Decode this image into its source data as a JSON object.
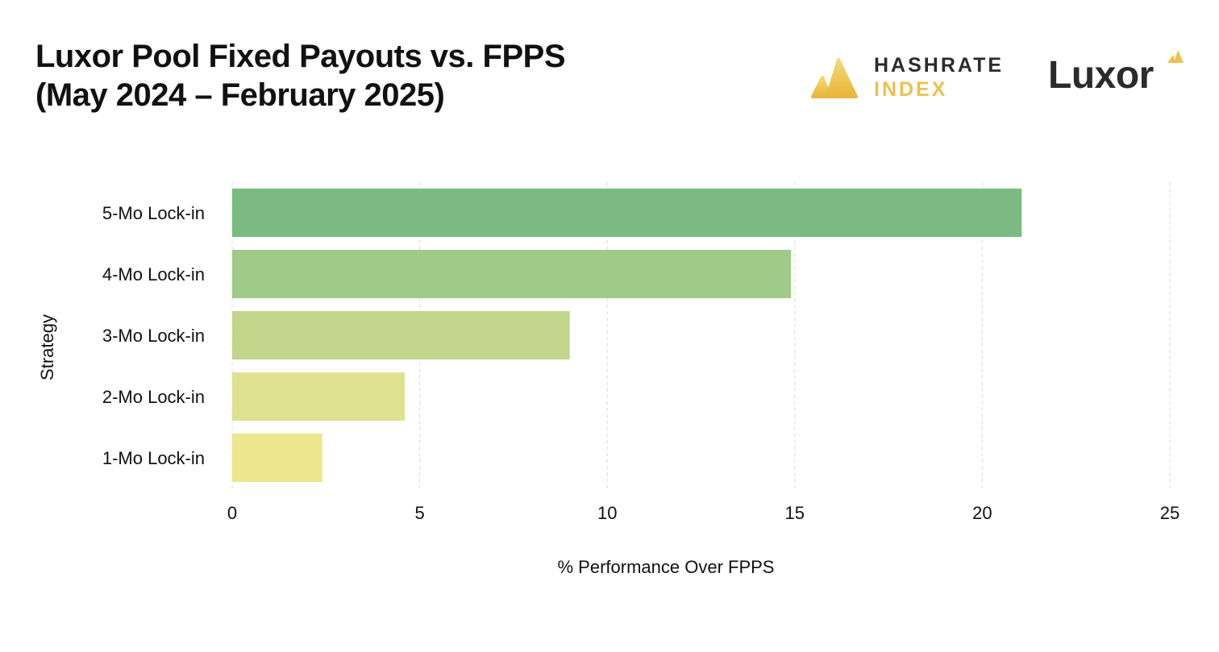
{
  "title": {
    "line1": "Luxor Pool Fixed Payouts vs. FPPS",
    "line2": "(May 2024 – February 2025)"
  },
  "logos": {
    "hashrate": {
      "line1": "HASHRATE",
      "line2": "INDEX",
      "icon": "hashrate-index-icon"
    },
    "luxor": {
      "word": "Luxor",
      "icon": "luxor-triangle-icon"
    }
  },
  "colors": {
    "logo_gold": "#ecc24d",
    "logo_dark": "#2b2b2b",
    "grid": "#d9d9d9"
  },
  "chart_data": {
    "type": "bar",
    "orientation": "horizontal",
    "categories": [
      "5-Mo Lock-in",
      "4-Mo Lock-in",
      "3-Mo Lock-in",
      "2-Mo Lock-in",
      "1-Mo Lock-in"
    ],
    "values": [
      21.05,
      14.9,
      9.0,
      4.6,
      2.4
    ],
    "bar_colors": [
      "#7bbb81",
      "#a0ca87",
      "#c1d68b",
      "#dfe191",
      "#ece68c"
    ],
    "xlabel": "% Performance Over FPPS",
    "ylabel": "Strategy",
    "xlim": [
      0,
      25
    ],
    "xticks": [
      0,
      5,
      10,
      15,
      20,
      25
    ],
    "grid": "vertical dashed",
    "legend": "none"
  }
}
